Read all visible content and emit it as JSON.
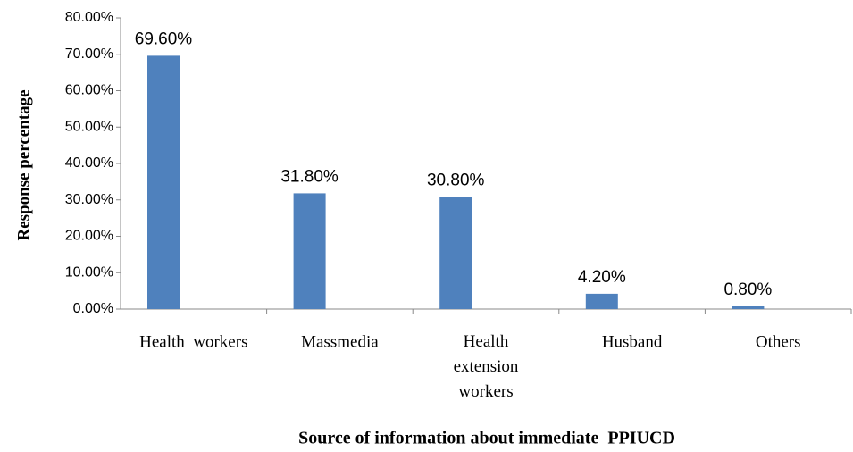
{
  "chart_data": {
    "type": "bar",
    "categories": [
      "Health  workers",
      "Massmedia",
      "Health\nextension\nworkers",
      "Husband",
      "Others"
    ],
    "values": [
      69.6,
      31.8,
      30.8,
      4.2,
      0.8
    ],
    "value_labels": [
      "69.60%",
      "31.80%",
      "30.80%",
      "4.20%",
      "0.80%"
    ],
    "color": "#4f81bd",
    "ylim": [
      0,
      80
    ],
    "yticks": [
      {
        "value": 0,
        "label": "0.00%"
      },
      {
        "value": 10,
        "label": "10.00%"
      },
      {
        "value": 20,
        "label": "20.00%"
      },
      {
        "value": 30,
        "label": "30.00%"
      },
      {
        "value": 40,
        "label": "40.00%"
      },
      {
        "value": 50,
        "label": "50.00%"
      },
      {
        "value": 60,
        "label": "60.00%"
      },
      {
        "value": 70,
        "label": "70.00%"
      },
      {
        "value": 80,
        "label": "80.00%"
      }
    ],
    "y_label": "Response percentage",
    "x_label": "Source of information about immediate  PPIUCD",
    "grid": false
  }
}
